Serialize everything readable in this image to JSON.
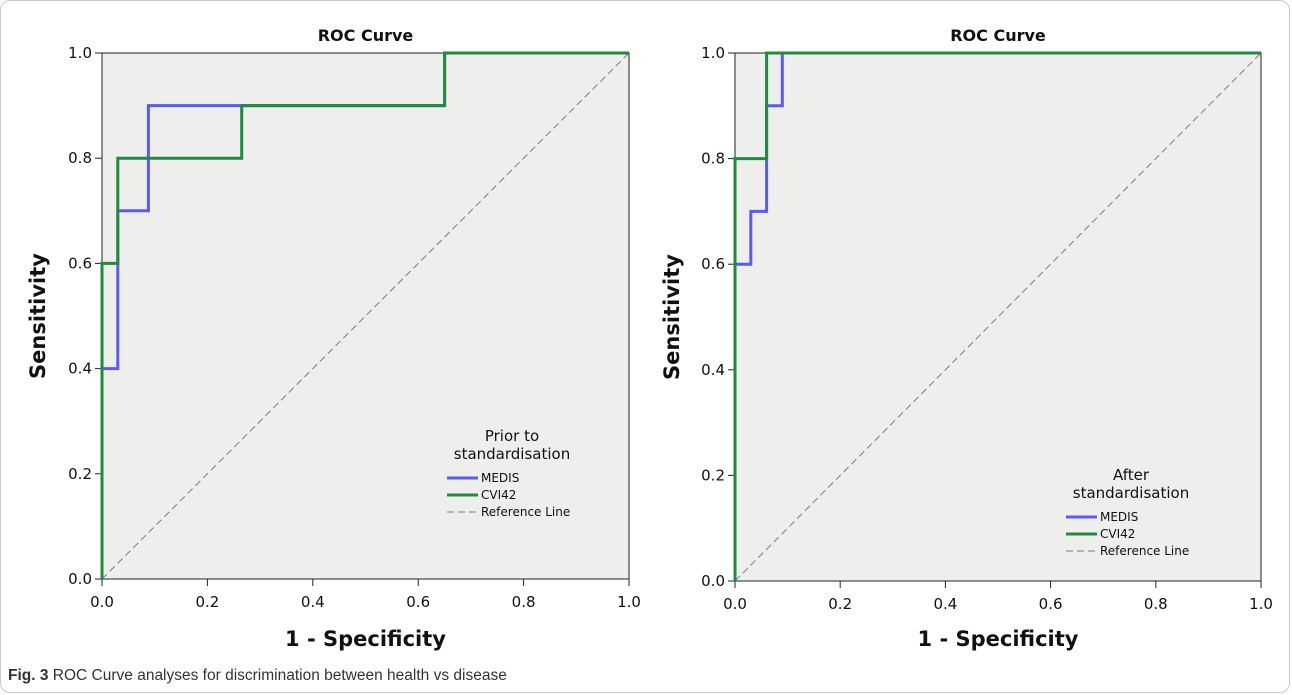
{
  "caption": {
    "label": "Fig. 3",
    "text": "ROC Curve analyses for discrimination between health vs disease"
  },
  "colors": {
    "plot_background": "#eeefed",
    "medis": "#5b5bf0",
    "cvi42": "#1e8c3c",
    "reference": "#7a7a7a"
  },
  "chart_data": [
    {
      "type": "line",
      "title": "ROC Curve",
      "xlabel": "1 - Specificity",
      "ylabel": "Sensitivity",
      "xlim": [
        0.0,
        1.0
      ],
      "ylim": [
        0.0,
        1.0
      ],
      "x_ticks": [
        "0.0",
        "0.2",
        "0.4",
        "0.6",
        "0.8",
        "1.0"
      ],
      "y_ticks": [
        "0.0",
        "0.2",
        "0.4",
        "0.6",
        "0.8",
        "1.0"
      ],
      "grid": false,
      "legend": {
        "position": "bottom-right",
        "title_lines": [
          "Prior to",
          "standardisation"
        ]
      },
      "series": [
        {
          "name": "MEDIS",
          "color": "#5b5bf0",
          "x": [
            0.0,
            0.0,
            0.03,
            0.03,
            0.088,
            0.088,
            0.65,
            0.65,
            1.0
          ],
          "y": [
            0.0,
            0.4,
            0.4,
            0.7,
            0.7,
            0.9,
            0.9,
            1.0,
            1.0
          ]
        },
        {
          "name": "CVI42",
          "color": "#1e8c3c",
          "x": [
            0.0,
            0.0,
            0.03,
            0.03,
            0.265,
            0.265,
            0.65,
            0.65,
            1.0
          ],
          "y": [
            0.0,
            0.6,
            0.6,
            0.8,
            0.8,
            0.9,
            0.9,
            1.0,
            1.0
          ]
        },
        {
          "name": "Reference Line",
          "color": "#7a7a7a",
          "dashed": true,
          "x": [
            0.0,
            1.0
          ],
          "y": [
            0.0,
            1.0
          ]
        }
      ]
    },
    {
      "type": "line",
      "title": "ROC Curve",
      "xlabel": "1 - Specificity",
      "ylabel": "Sensitivity",
      "xlim": [
        0.0,
        1.0
      ],
      "ylim": [
        0.0,
        1.0
      ],
      "x_ticks": [
        "0.0",
        "0.2",
        "0.4",
        "0.6",
        "0.8",
        "1.0"
      ],
      "y_ticks": [
        "0.0",
        "0.2",
        "0.4",
        "0.6",
        "0.8",
        "1.0"
      ],
      "grid": false,
      "legend": {
        "position": "bottom-right",
        "title_lines": [
          "After",
          "standardisation"
        ]
      },
      "series": [
        {
          "name": "MEDIS",
          "color": "#5b5bf0",
          "x": [
            0.0,
            0.0,
            0.03,
            0.03,
            0.06,
            0.06,
            0.09,
            0.09,
            1.0
          ],
          "y": [
            0.0,
            0.6,
            0.6,
            0.7,
            0.7,
            0.9,
            0.9,
            1.0,
            1.0
          ]
        },
        {
          "name": "CVI42",
          "color": "#1e8c3c",
          "x": [
            0.0,
            0.0,
            0.06,
            0.06,
            1.0
          ],
          "y": [
            0.0,
            0.8,
            0.8,
            1.0,
            1.0
          ]
        },
        {
          "name": "Reference Line",
          "color": "#7a7a7a",
          "dashed": true,
          "x": [
            0.0,
            1.0
          ],
          "y": [
            0.0,
            1.0
          ]
        }
      ]
    }
  ]
}
